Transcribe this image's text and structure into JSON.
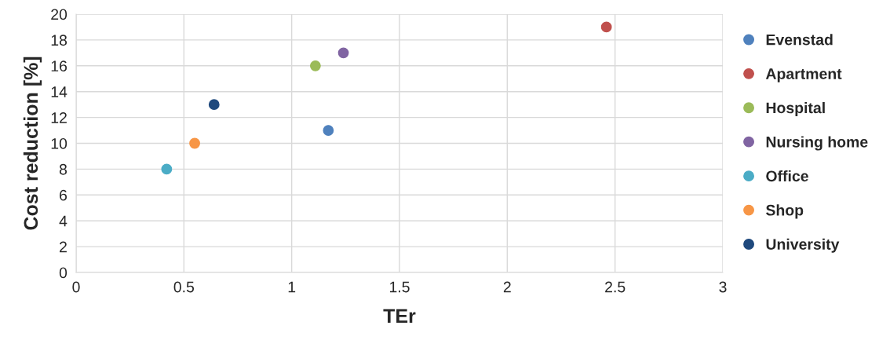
{
  "chart_data": {
    "type": "scatter",
    "xlabel": "TEr",
    "ylabel": "Cost reduction [%]",
    "series": [
      {
        "name": "Evenstad",
        "color": "#4f81bd",
        "x": [
          1.17
        ],
        "values": [
          11
        ]
      },
      {
        "name": "Apartment",
        "color": "#c0504d",
        "x": [
          2.46
        ],
        "values": [
          19
        ]
      },
      {
        "name": "Hospital",
        "color": "#9bbb59",
        "x": [
          1.11
        ],
        "values": [
          16
        ]
      },
      {
        "name": "Nursing home",
        "color": "#8064a2",
        "x": [
          1.24
        ],
        "values": [
          17
        ]
      },
      {
        "name": "Office",
        "color": "#4bacc6",
        "x": [
          0.42
        ],
        "values": [
          8
        ]
      },
      {
        "name": "Shop",
        "color": "#f79646",
        "x": [
          0.55
        ],
        "values": [
          10
        ]
      },
      {
        "name": "University",
        "color": "#1f497d",
        "x": [
          0.64
        ],
        "values": [
          13
        ]
      }
    ],
    "xlim": [
      0,
      3
    ],
    "xticks": [
      0,
      0.5,
      1,
      1.5,
      2,
      2.5,
      3
    ],
    "ylim": [
      0,
      20
    ],
    "yticks": [
      0,
      2,
      4,
      6,
      8,
      10,
      12,
      14,
      16,
      18,
      20
    ],
    "grid": true,
    "legend": "right",
    "marker": "circle"
  }
}
